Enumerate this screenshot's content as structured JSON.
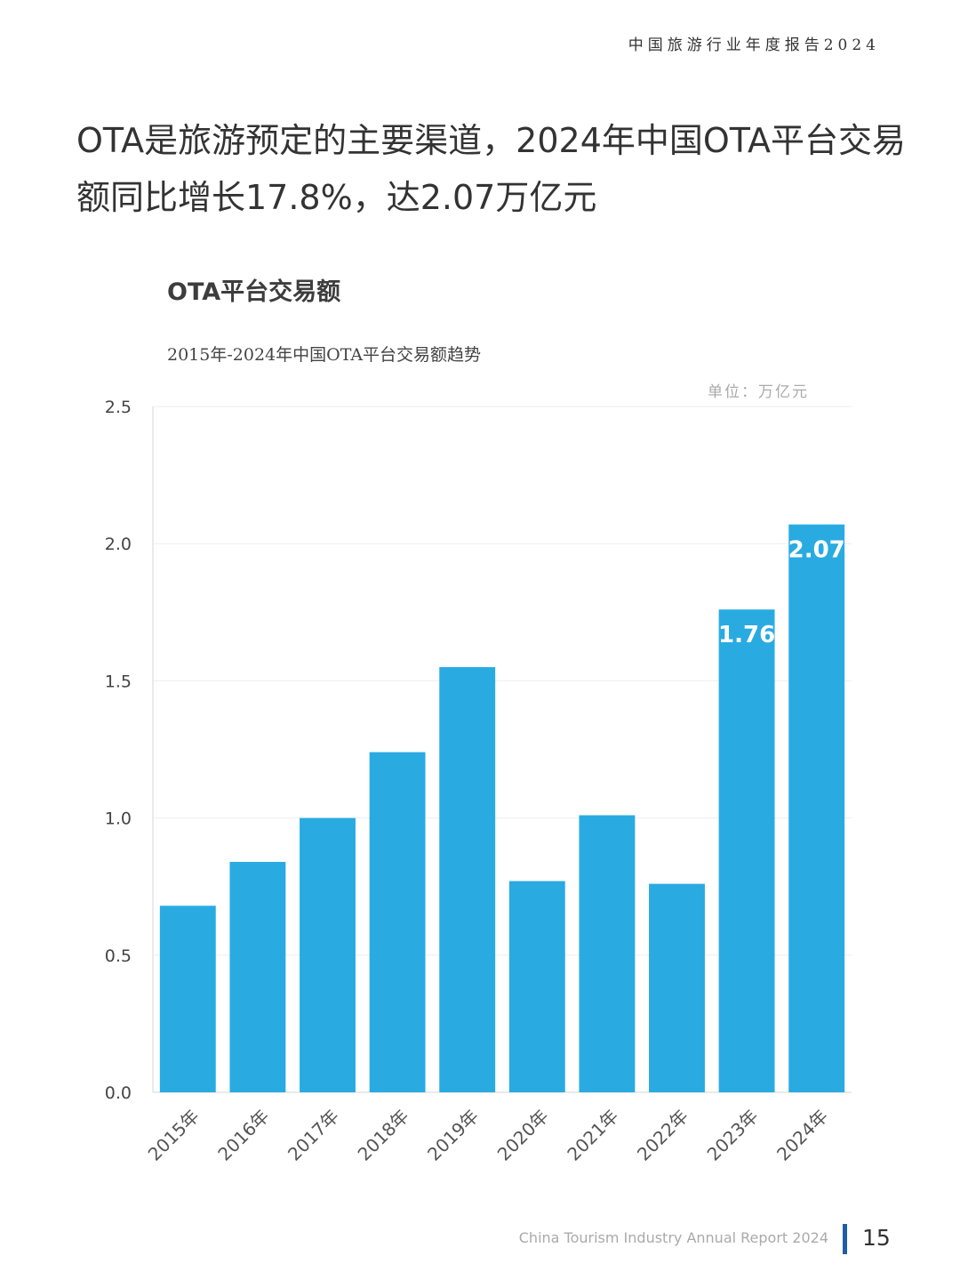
{
  "header": {
    "report_title": "中国旅游行业年度报告2024"
  },
  "headline": "OTA是旅游预定的主要渠道，2024年中国OTA平台交易额同比增长17.8%，达2.07万亿元",
  "chart_data": {
    "type": "bar",
    "title": "OTA平台交易额",
    "subtitle": "2015年-2024年中国OTA平台交易额趋势",
    "unit": "单位：万亿元",
    "categories": [
      "2015年",
      "2016年",
      "2017年",
      "2018年",
      "2019年",
      "2020年",
      "2021年",
      "2022年",
      "2023年",
      "2024年"
    ],
    "values": [
      0.68,
      0.84,
      1.0,
      1.24,
      1.55,
      0.77,
      1.01,
      0.76,
      1.76,
      2.07
    ],
    "data_labels": [
      "",
      "",
      "",
      "",
      "",
      "",
      "",
      "",
      "1.76",
      "2.07"
    ],
    "yticks": [
      "0.0",
      "0.5",
      "1.0",
      "1.5",
      "2.0",
      "2.5"
    ],
    "ylim": [
      0,
      2.5
    ],
    "grid": true,
    "bar_color": "#29ABE2"
  },
  "footer": {
    "report_name": "China Tourism Industry Annual Report 2024",
    "page_number": "15",
    "accent_color": "#1e5ea8"
  }
}
